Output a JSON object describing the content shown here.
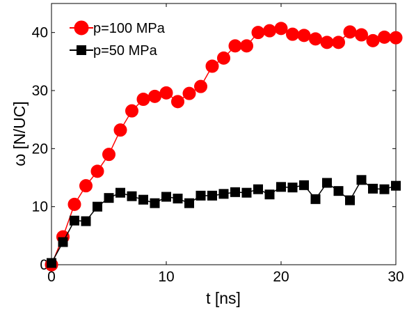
{
  "chart_data": {
    "type": "line",
    "xlabel": "t [ns]",
    "ylabel": "ω [N/UC]",
    "xlim": [
      0,
      30
    ],
    "ylim": [
      0,
      45
    ],
    "xticks": [
      0,
      10,
      20,
      30
    ],
    "yticks": [
      0,
      10,
      20,
      30,
      40
    ],
    "grid": false,
    "legend_position": "top-left",
    "series": [
      {
        "name": "p=100 MPa",
        "color": "#ff0000",
        "marker": "circle",
        "x": [
          0,
          1,
          2,
          3,
          4,
          5,
          6,
          7,
          8,
          9,
          10,
          11,
          12,
          13,
          14,
          15,
          16,
          17,
          18,
          19,
          20,
          21,
          22,
          23,
          24,
          25,
          26,
          27,
          28,
          29,
          30
        ],
        "y": [
          0,
          4.8,
          10.4,
          13.6,
          16.1,
          19.0,
          23.2,
          26.5,
          28.5,
          29.0,
          29.6,
          28.1,
          29.5,
          30.7,
          34.2,
          35.6,
          37.7,
          37.7,
          40.0,
          40.3,
          40.7,
          39.7,
          39.5,
          38.9,
          38.3,
          38.3,
          40.1,
          39.6,
          38.6,
          39.2,
          39.1
        ]
      },
      {
        "name": "p=50 MPa",
        "color": "#000000",
        "marker": "square",
        "x": [
          0,
          1,
          2,
          3,
          4,
          5,
          6,
          7,
          8,
          9,
          10,
          11,
          12,
          13,
          14,
          15,
          16,
          17,
          18,
          19,
          20,
          21,
          22,
          23,
          24,
          25,
          26,
          27,
          28,
          29,
          30
        ],
        "y": [
          0.3,
          3.9,
          7.6,
          7.5,
          10.0,
          11.5,
          12.4,
          11.8,
          11.2,
          10.6,
          11.7,
          11.4,
          10.6,
          11.9,
          11.9,
          12.2,
          12.5,
          12.4,
          13.0,
          12.1,
          13.4,
          13.3,
          13.7,
          11.3,
          14.1,
          12.7,
          11.1,
          14.6,
          13.1,
          13.0,
          13.6
        ]
      }
    ]
  }
}
